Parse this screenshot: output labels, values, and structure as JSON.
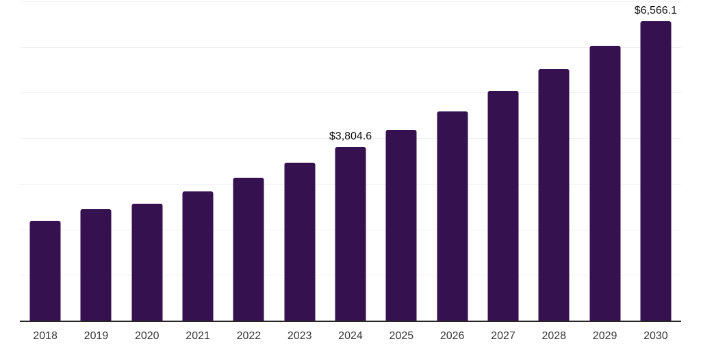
{
  "chart_data": {
    "type": "bar",
    "title": "",
    "xlabel": "",
    "ylabel": "",
    "categories": [
      "2018",
      "2019",
      "2020",
      "2021",
      "2022",
      "2023",
      "2024",
      "2025",
      "2026",
      "2027",
      "2028",
      "2029",
      "2030"
    ],
    "values": [
      2190,
      2445,
      2565,
      2835,
      3135,
      3470,
      3804.6,
      4185,
      4580,
      5030,
      5515,
      6030,
      6566.1
    ],
    "data_labels": {
      "2024": "$3,804.6",
      "2030": "$6,566.1"
    },
    "ylim": [
      0,
      7000
    ],
    "gridline_step": 1000,
    "grid": "horizontal-only",
    "legend_position": "none",
    "y_axis_tick_labels_visible": false,
    "bar_color": "#36114F",
    "axis_line_color": "#262626",
    "gridline_color": "#f0f0f0",
    "tick_label_color": "#383838",
    "data_label_color": "#111111",
    "background_color": "#ffffff"
  }
}
